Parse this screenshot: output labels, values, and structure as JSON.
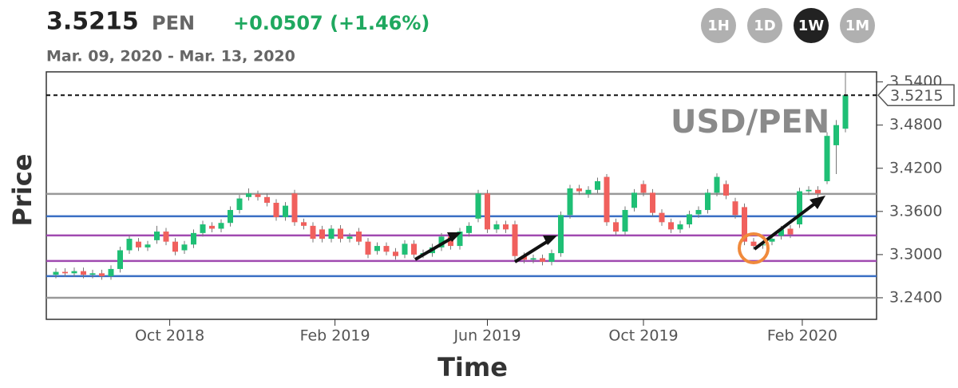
{
  "header": {
    "price": "3.5215",
    "currency": "PEN",
    "change": "+0.0507 (+1.46%)",
    "date_range": "Mar. 09, 2020 - Mar. 13, 2020",
    "intervals": [
      "1H",
      "1D",
      "1W",
      "1M"
    ],
    "active_interval": "1W"
  },
  "chart_data": {
    "type": "candlestick",
    "annotation": "USD/PEN",
    "ylabel": "Price",
    "xlabel": "Time",
    "up_color": "#1fbf75",
    "down_color": "#f0605d",
    "ylim": [
      3.21,
      3.554
    ],
    "yticks": [
      {
        "value": 3.24,
        "label": "3.2400"
      },
      {
        "value": 3.3,
        "label": "3.3000"
      },
      {
        "value": 3.36,
        "label": "3.3600"
      },
      {
        "value": 3.42,
        "label": "3.4200"
      },
      {
        "value": 3.48,
        "label": "3.4800"
      },
      {
        "value": 3.54,
        "label": "3.5400"
      }
    ],
    "xticks": [
      {
        "value": 12.4,
        "label": "Oct 2018"
      },
      {
        "value": 30.4,
        "label": "Feb 2019"
      },
      {
        "value": 47,
        "label": "Jun 2019"
      },
      {
        "value": 64,
        "label": "Oct 2019"
      },
      {
        "value": 81.3,
        "label": "Feb 2020"
      }
    ],
    "last_price": 3.5215,
    "levels": [
      {
        "value": 3.3844,
        "color": "#999999"
      },
      {
        "value": 3.3533,
        "color": "#3a6fc4"
      },
      {
        "value": 3.3267,
        "color": "#a04ab0"
      },
      {
        "value": 3.2911,
        "color": "#a04ab0"
      },
      {
        "value": 3.27,
        "color": "#3a6fc4"
      },
      {
        "value": 3.24,
        "color": "#999999"
      }
    ],
    "open": [
      3.272,
      3.276,
      3.274,
      3.277,
      3.272,
      3.274,
      3.27,
      3.28,
      3.306,
      3.318,
      3.31,
      3.32,
      3.332,
      3.318,
      3.306,
      3.314,
      3.33,
      3.34,
      3.336,
      3.344,
      3.362,
      3.38,
      3.384,
      3.38,
      3.372,
      3.352,
      3.385,
      3.345,
      3.34,
      3.335,
      3.322,
      3.336,
      3.322,
      3.332,
      3.318,
      3.305,
      3.312,
      3.304,
      3.3,
      3.315,
      3.3,
      3.302,
      3.31,
      3.325,
      3.312,
      3.33,
      3.35,
      3.385,
      3.335,
      3.342,
      3.342,
      3.298,
      3.293,
      3.295,
      3.29,
      3.302,
      3.355,
      3.392,
      3.384,
      3.39,
      3.408,
      3.345,
      3.332,
      3.365,
      3.398,
      3.386,
      3.358,
      3.345,
      3.335,
      3.342,
      3.356,
      3.362,
      3.386,
      3.398,
      3.374,
      3.366,
      3.318,
      3.313,
      3.318,
      3.326,
      3.336,
      3.342,
      3.388,
      3.39,
      3.402,
      3.452,
      3.475
    ],
    "high": [
      3.281,
      3.281,
      3.282,
      3.282,
      3.279,
      3.279,
      3.285,
      3.311,
      3.327,
      3.323,
      3.319,
      3.34,
      3.337,
      3.323,
      3.319,
      3.335,
      3.347,
      3.345,
      3.349,
      3.367,
      3.383,
      3.392,
      3.389,
      3.385,
      3.377,
      3.373,
      3.39,
      3.35,
      3.345,
      3.34,
      3.341,
      3.341,
      3.33,
      3.337,
      3.323,
      3.317,
      3.317,
      3.309,
      3.32,
      3.32,
      3.307,
      3.315,
      3.33,
      3.33,
      3.337,
      3.345,
      3.39,
      3.39,
      3.347,
      3.347,
      3.347,
      3.303,
      3.3,
      3.3,
      3.307,
      3.36,
      3.397,
      3.397,
      3.395,
      3.407,
      3.412,
      3.35,
      3.367,
      3.391,
      3.403,
      3.391,
      3.363,
      3.35,
      3.347,
      3.361,
      3.367,
      3.391,
      3.413,
      3.403,
      3.379,
      3.371,
      3.323,
      3.319,
      3.327,
      3.34,
      3.341,
      3.393,
      3.395,
      3.395,
      3.47,
      3.487,
      3.553
    ],
    "low": [
      3.267,
      3.269,
      3.269,
      3.267,
      3.267,
      3.265,
      3.265,
      3.275,
      3.301,
      3.305,
      3.305,
      3.315,
      3.313,
      3.299,
      3.301,
      3.309,
      3.325,
      3.331,
      3.331,
      3.339,
      3.357,
      3.375,
      3.375,
      3.367,
      3.347,
      3.347,
      3.34,
      3.335,
      3.317,
      3.317,
      3.317,
      3.317,
      3.317,
      3.313,
      3.295,
      3.3,
      3.299,
      3.293,
      3.295,
      3.295,
      3.295,
      3.297,
      3.305,
      3.307,
      3.307,
      3.325,
      3.345,
      3.33,
      3.33,
      3.33,
      3.293,
      3.288,
      3.288,
      3.285,
      3.285,
      3.297,
      3.35,
      3.383,
      3.379,
      3.385,
      3.34,
      3.327,
      3.327,
      3.36,
      3.381,
      3.353,
      3.34,
      3.33,
      3.33,
      3.337,
      3.351,
      3.357,
      3.381,
      3.377,
      3.35,
      3.313,
      3.307,
      3.308,
      3.313,
      3.321,
      3.323,
      3.337,
      3.383,
      3.38,
      3.398,
      3.412,
      3.47
    ],
    "close": [
      3.276,
      3.274,
      3.277,
      3.272,
      3.274,
      3.27,
      3.28,
      3.306,
      3.322,
      3.31,
      3.314,
      3.332,
      3.318,
      3.304,
      3.314,
      3.33,
      3.342,
      3.336,
      3.344,
      3.362,
      3.378,
      3.385,
      3.38,
      3.372,
      3.352,
      3.368,
      3.345,
      3.34,
      3.322,
      3.322,
      3.336,
      3.322,
      3.325,
      3.318,
      3.3,
      3.312,
      3.304,
      3.298,
      3.315,
      3.3,
      3.302,
      3.31,
      3.325,
      3.312,
      3.332,
      3.34,
      3.385,
      3.335,
      3.342,
      3.335,
      3.298,
      3.293,
      3.295,
      3.29,
      3.302,
      3.355,
      3.392,
      3.388,
      3.39,
      3.402,
      3.345,
      3.332,
      3.362,
      3.386,
      3.386,
      3.358,
      3.345,
      3.335,
      3.342,
      3.356,
      3.362,
      3.386,
      3.408,
      3.382,
      3.355,
      3.318,
      3.312,
      3.314,
      3.322,
      3.335,
      3.328,
      3.388,
      3.39,
      3.385,
      3.465,
      3.48,
      3.5215
    ]
  }
}
